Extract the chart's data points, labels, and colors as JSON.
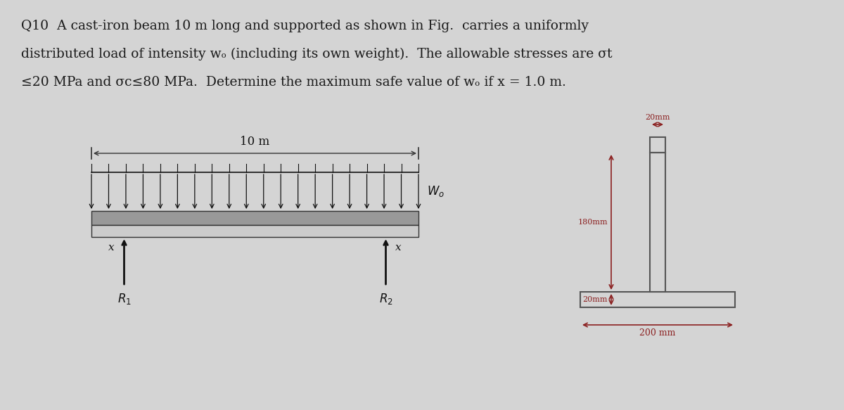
{
  "bg_color": "#d8d8d8",
  "text_color": "#1a1a1a",
  "dim_color": "#8B2020",
  "title_lines": [
    "Q10  A cast-iron beam 10 m long and supported as shown in Fig.  carries a uniformly",
    "distributed load of intensity wₒ (including its own weight).  The allowable stresses are σt",
    "≤20 MPa and σc≤80 MPa.  Determine the maximum safe value of wₒ if x = 1.0 m."
  ],
  "title_fontsize": 13.5,
  "bg_color_light": "#e0e0e0"
}
